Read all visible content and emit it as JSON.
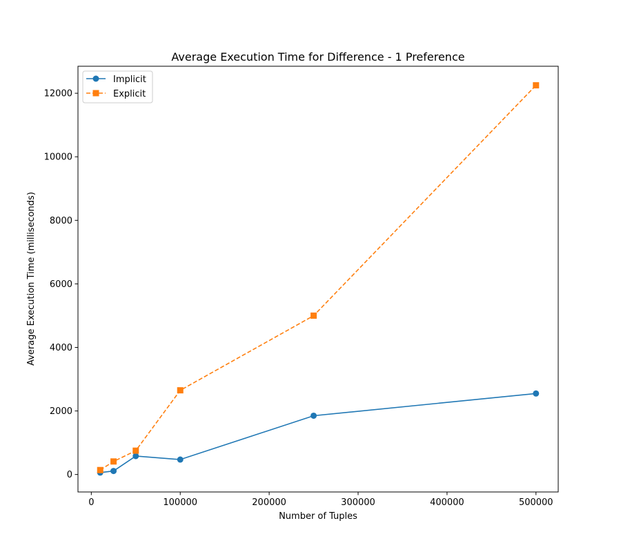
{
  "chart_data": {
    "type": "line",
    "title": "Average Execution Time for Difference - 1 Preference",
    "xlabel": "Number of Tuples",
    "ylabel": "Average Execution Time (milliseconds)",
    "xlim": [
      -15000,
      525000
    ],
    "ylim": [
      -550,
      12850
    ],
    "xticks": [
      0,
      100000,
      200000,
      300000,
      400000,
      500000
    ],
    "yticks": [
      0,
      2000,
      4000,
      6000,
      8000,
      10000,
      12000
    ],
    "grid": false,
    "legend_position": "top-left",
    "x": [
      10000,
      25000,
      50000,
      100000,
      250000,
      500000
    ],
    "series": [
      {
        "name": "Implicit",
        "values": [
          60,
          110,
          580,
          470,
          1850,
          2550
        ],
        "color": "#1f77b4",
        "marker": "circle",
        "line_style": "solid"
      },
      {
        "name": "Explicit",
        "values": [
          140,
          410,
          750,
          2650,
          5000,
          12250
        ],
        "color": "#ff7f0e",
        "marker": "square",
        "line_style": "dashed"
      }
    ]
  }
}
